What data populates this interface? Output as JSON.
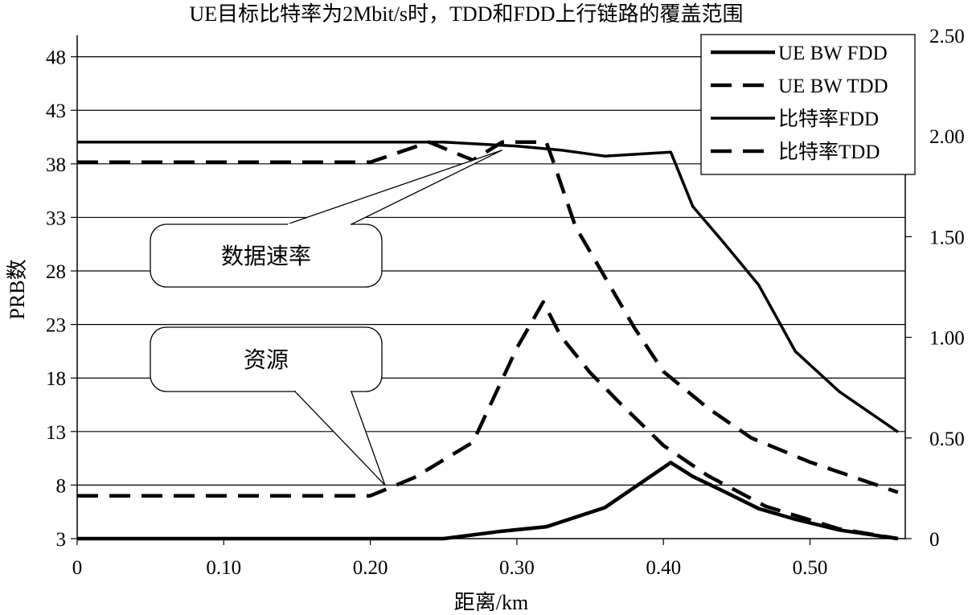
{
  "chart_data": {
    "type": "line",
    "title": "UE目标比特率为2Mbit/s时，TDD和FDD上行链路的覆盖范围",
    "xlabel": "距离/km",
    "ylabel_left": "PRB数",
    "ylabel_right": "",
    "xlim": [
      0,
      0.565
    ],
    "ylim_left": [
      3,
      50
    ],
    "ylim_right": [
      0,
      2.5
    ],
    "x_ticks": [
      0,
      0.1,
      0.2,
      0.3,
      0.4,
      0.5
    ],
    "x_tick_labels": [
      "0",
      "0.10",
      "0.20",
      "0.30",
      "0.40",
      "0.50"
    ],
    "y_left_ticks": [
      3,
      8,
      13,
      18,
      23,
      28,
      33,
      38,
      43,
      48
    ],
    "y_left_tick_labels": [
      "3",
      "8",
      "13",
      "18",
      "23",
      "28",
      "33",
      "38",
      "43",
      "48"
    ],
    "y_right_ticks": [
      0,
      0.5,
      1.0,
      1.5,
      2.0,
      2.5
    ],
    "y_right_tick_labels": [
      "0",
      "0.50",
      "1.00",
      "1.50",
      "2.00",
      "2.50"
    ],
    "grid": "horizontal",
    "legend_position": "top-right",
    "series": [
      {
        "name": "UE BW FDD",
        "axis": "left",
        "style": "solid-thick",
        "x": [
          0,
          0.2,
          0.25,
          0.29,
          0.32,
          0.36,
          0.405,
          0.42,
          0.44,
          0.465,
          0.49,
          0.52,
          0.56
        ],
        "y": [
          3,
          3,
          3,
          3.7,
          4.1,
          5.9,
          10.1,
          8.8,
          7.5,
          5.8,
          4.8,
          3.8,
          3.0
        ]
      },
      {
        "name": "UE BW TDD",
        "axis": "left",
        "style": "dashed",
        "x": [
          0,
          0.2,
          0.23,
          0.27,
          0.3,
          0.318,
          0.33,
          0.35,
          0.37,
          0.4,
          0.43,
          0.47,
          0.52,
          0.56
        ],
        "y": [
          7.0,
          7.0,
          8.7,
          12.0,
          20.8,
          25.1,
          21.9,
          18.5,
          15.7,
          11.7,
          8.9,
          6.0,
          3.9,
          3.0
        ]
      },
      {
        "name": "比特率FDD",
        "axis": "right",
        "style": "solid",
        "x": [
          0,
          0.2,
          0.25,
          0.3,
          0.33,
          0.36,
          0.405,
          0.42,
          0.44,
          0.465,
          0.49,
          0.52,
          0.56
        ],
        "y": [
          1.97,
          1.97,
          1.97,
          1.95,
          1.93,
          1.9,
          1.92,
          1.65,
          1.48,
          1.26,
          0.93,
          0.73,
          0.53
        ]
      },
      {
        "name": "比特率TDD",
        "axis": "right",
        "style": "dashed",
        "x": [
          0,
          0.2,
          0.24,
          0.27,
          0.29,
          0.32,
          0.325,
          0.34,
          0.36,
          0.38,
          0.4,
          0.43,
          0.46,
          0.5,
          0.56
        ],
        "y": [
          1.87,
          1.87,
          1.97,
          1.88,
          1.97,
          1.97,
          1.87,
          1.55,
          1.3,
          1.05,
          0.83,
          0.65,
          0.5,
          0.38,
          0.23
        ]
      }
    ],
    "annotations": [
      {
        "text": "数据速率",
        "target_x": 0.29,
        "target_axis": "right",
        "target_y": 1.93
      },
      {
        "text": "资源",
        "target_x": 0.21,
        "target_axis": "left",
        "target_y": 8.0
      }
    ]
  }
}
